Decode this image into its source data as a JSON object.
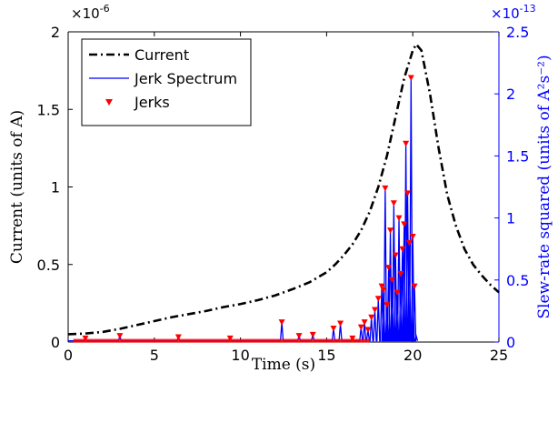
{
  "chart_data": {
    "type": "line",
    "x_axis": {
      "label": "Time (s)",
      "range": [
        0,
        25
      ],
      "ticks": [
        "0",
        "5",
        "10",
        "15",
        "20",
        "25"
      ]
    },
    "y_axis_left": {
      "label": "Current (units of A)",
      "multiplier": "×10-6",
      "range": [
        0,
        2
      ],
      "ticks": [
        "0",
        "0.5",
        "1",
        "1.5",
        "2"
      ]
    },
    "y_axis_right": {
      "label": "Slew-rate squared (units of A²s⁻²)",
      "multiplier": "×10-13",
      "range": [
        0,
        2.5
      ],
      "ticks": [
        "0",
        "0.5",
        "1",
        "1.5",
        "2",
        "2.5"
      ],
      "color": "#0000ff"
    },
    "legend": {
      "placement": "top-left",
      "entries": [
        "Current",
        "Jerk Spectrum",
        "Jerks"
      ]
    },
    "series": [
      {
        "name": "Current",
        "axis": "left",
        "style": "dash-dot",
        "color": "#000000",
        "x": [
          0,
          1,
          2,
          3,
          4,
          5,
          6,
          7,
          8,
          9,
          10,
          11,
          12,
          13,
          14,
          15,
          15.5,
          16,
          16.5,
          17,
          17.5,
          18,
          18.5,
          19,
          19.5,
          20,
          20.2,
          20.5,
          21,
          21.5,
          22,
          22.5,
          23,
          23.5,
          24,
          24.5,
          25
        ],
        "y": [
          0.05,
          0.055,
          0.065,
          0.085,
          0.11,
          0.135,
          0.16,
          0.18,
          0.2,
          0.225,
          0.245,
          0.27,
          0.3,
          0.34,
          0.385,
          0.45,
          0.5,
          0.56,
          0.63,
          0.72,
          0.84,
          1.0,
          1.2,
          1.45,
          1.7,
          1.88,
          1.92,
          1.88,
          1.6,
          1.25,
          0.95,
          0.75,
          0.6,
          0.5,
          0.43,
          0.37,
          0.32
        ]
      },
      {
        "name": "Jerk Spectrum",
        "axis": "right",
        "style": "solid",
        "color": "#0000ff",
        "x": [
          1.0,
          3.0,
          6.4,
          9.4,
          12.4,
          13.4,
          14.2,
          15.4,
          15.8,
          16.5,
          17.0,
          17.2,
          17.4,
          17.6,
          17.8,
          18.0,
          18.2,
          18.3,
          18.4,
          18.5,
          18.6,
          18.7,
          18.8,
          18.9,
          19.0,
          19.1,
          19.2,
          19.3,
          19.4,
          19.5,
          19.6,
          19.7,
          19.8,
          19.9,
          20.0,
          20.1,
          20.2
        ],
        "y": [
          0.03,
          0.05,
          0.04,
          0.03,
          0.16,
          0.05,
          0.06,
          0.11,
          0.15,
          0.03,
          0.12,
          0.16,
          0.1,
          0.2,
          0.26,
          0.35,
          0.45,
          0.42,
          1.24,
          0.3,
          0.6,
          0.9,
          0.5,
          1.12,
          0.7,
          0.4,
          1.0,
          0.55,
          0.75,
          0.95,
          1.6,
          1.2,
          0.8,
          2.13,
          0.85,
          0.45,
          0.05
        ]
      },
      {
        "name": "Jerks",
        "axis": "right",
        "style": "marker-down-triangle",
        "color": "#ff0000",
        "x": [
          1.0,
          3.0,
          6.4,
          9.4,
          12.4,
          13.4,
          14.2,
          15.4,
          15.8,
          16.5,
          17.0,
          17.2,
          17.4,
          17.6,
          17.8,
          18.0,
          18.2,
          18.3,
          18.4,
          18.5,
          18.6,
          18.7,
          18.8,
          18.9,
          19.0,
          19.1,
          19.2,
          19.3,
          19.4,
          19.5,
          19.6,
          19.7,
          19.8,
          19.9,
          20.0,
          20.1
        ],
        "y": [
          0.03,
          0.05,
          0.04,
          0.03,
          0.16,
          0.05,
          0.06,
          0.11,
          0.15,
          0.03,
          0.12,
          0.16,
          0.1,
          0.2,
          0.26,
          0.35,
          0.45,
          0.42,
          1.24,
          0.3,
          0.6,
          0.9,
          0.5,
          1.12,
          0.7,
          0.4,
          1.0,
          0.55,
          0.75,
          0.95,
          1.6,
          1.2,
          0.8,
          2.13,
          0.85,
          0.45
        ]
      }
    ],
    "grid": false
  }
}
